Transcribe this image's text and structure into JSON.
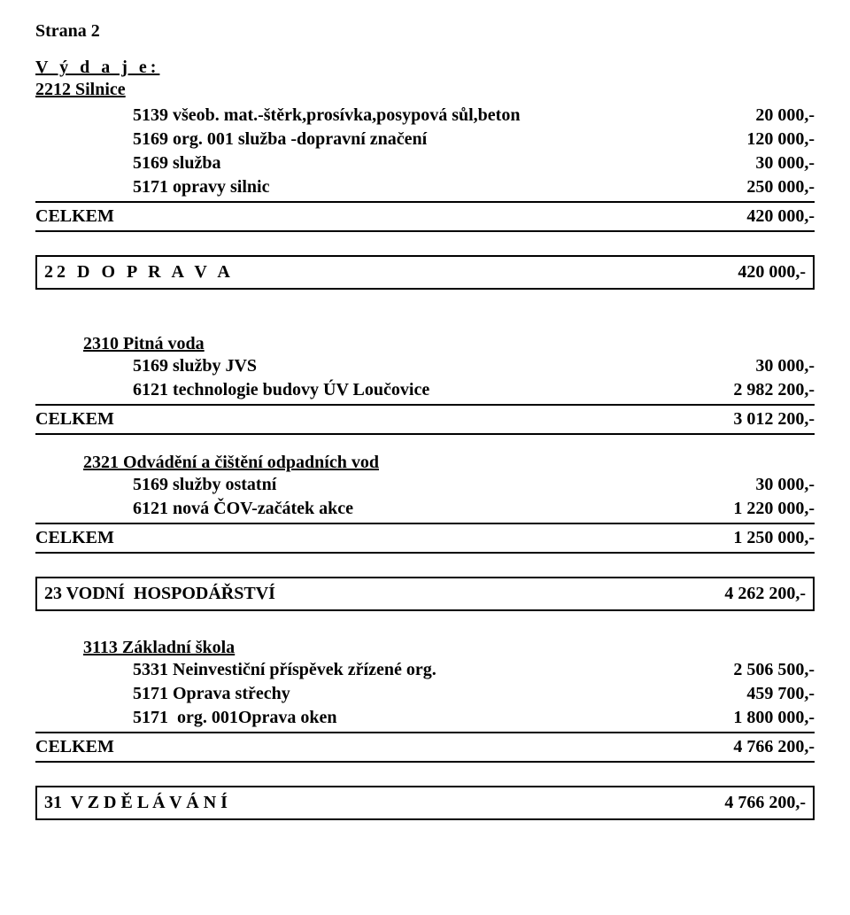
{
  "page_label": "Strana 2",
  "header": {
    "section_title": "V ý d a j e:",
    "sub": "2212 Silnice"
  },
  "group1": {
    "rows": [
      {
        "label": "5139 všeob. mat.-štěrk,prosívka,posypová sůl,beton",
        "value": "20 000,-"
      },
      {
        "label": "5169 org. 001 služba -dopravní značení",
        "value": "120 000,-"
      },
      {
        "label": "5169 služba",
        "value": "30 000,-"
      },
      {
        "label": "5171 opravy silnic",
        "value": "250 000,-"
      }
    ],
    "total_label": "CELKEM",
    "total_value": "420 000,-"
  },
  "box1": {
    "label": "22 D O P R A V A",
    "value": "420 000,-"
  },
  "group2": {
    "heading": "2310 Pitná voda",
    "rows": [
      {
        "label": "5169 služby JVS",
        "value": "30 000,-"
      },
      {
        "label": "6121 technologie budovy ÚV Loučovice",
        "value": "2 982 200,-"
      }
    ],
    "total_label": "CELKEM",
    "total_value": "3 012 200,-"
  },
  "group3": {
    "heading": "2321 Odvádění a čištění odpadních vod",
    "rows": [
      {
        "label": "5169 služby ostatní",
        "value": "30 000,-"
      },
      {
        "label": "6121 nová ČOV-začátek akce",
        "value": "1 220 000,-"
      }
    ],
    "total_label": "CELKEM",
    "total_value": "1 250 000,-"
  },
  "box2": {
    "label": "23 VODNÍ  HOSPODÁŘSTVÍ",
    "value": "4 262 200,-"
  },
  "group4": {
    "heading": "3113 Základní škola",
    "rows": [
      {
        "label": "5331 Neinvestiční příspěvek zřízené org.",
        "value": "2 506 500,-"
      },
      {
        "label": "5171 Oprava střechy",
        "value": "459 700,-"
      },
      {
        "label": "5171  org. 001Oprava oken",
        "value": "1 800 000,-"
      }
    ],
    "total_label": "CELKEM",
    "total_value": "4 766 200,-"
  },
  "box3": {
    "label": "31  V Z D Ě L Á V Á N Í",
    "value": "4 766 200,-"
  }
}
